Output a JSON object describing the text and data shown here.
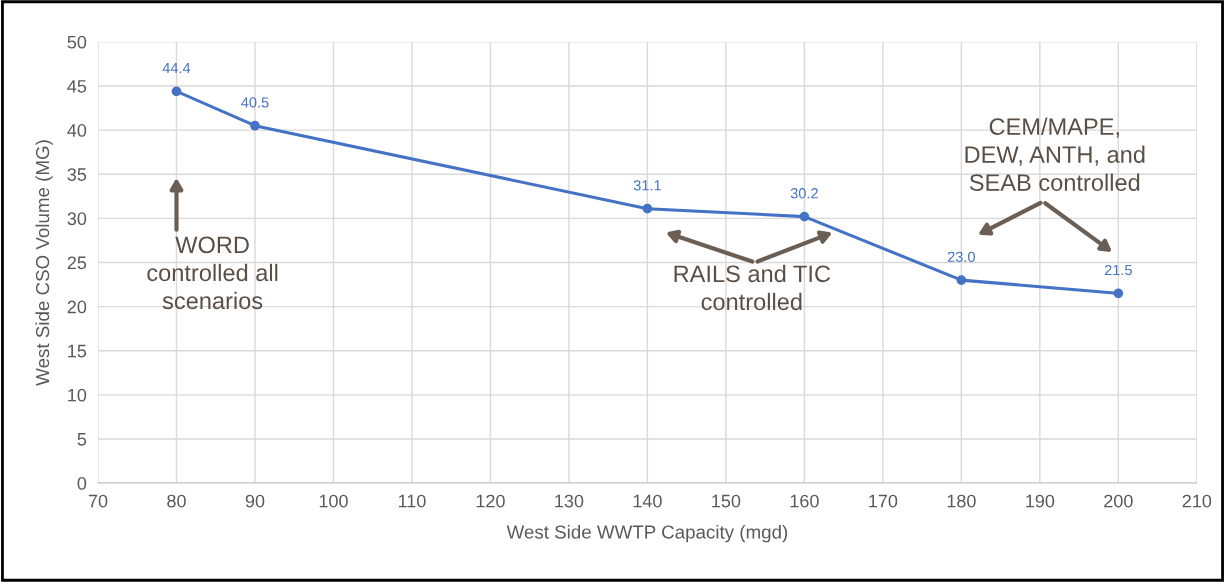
{
  "chart_data": {
    "type": "line",
    "xlabel": "West Side WWTP Capacity (mgd)",
    "ylabel": "West Side CSO Volume (MG)",
    "x": [
      80,
      90,
      140,
      160,
      180,
      200
    ],
    "series": [
      {
        "color": "#4472c4",
        "values": [
          44.4,
          40.5,
          31.1,
          30.2,
          23.0,
          21.5
        ],
        "value_labels": [
          "44.4",
          "40.5",
          "31.1",
          "30.2",
          "23.0",
          "21.5"
        ]
      }
    ],
    "xlim": [
      70,
      210
    ],
    "xticks": [
      70,
      80,
      90,
      100,
      110,
      120,
      130,
      140,
      150,
      160,
      170,
      180,
      190,
      200,
      210
    ],
    "ylim": [
      0,
      50
    ],
    "yticks": [
      0,
      5,
      10,
      15,
      20,
      25,
      30,
      35,
      40,
      45,
      50
    ],
    "grid": true,
    "marker": "circle",
    "line_style": "solid",
    "annotations": [
      "WORD\ncontrolled all\nscenarios",
      "RAILS and TIC\ncontrolled",
      "CEM/MAPE,\nDEW, ANTH, and\nSEAB controlled"
    ]
  }
}
